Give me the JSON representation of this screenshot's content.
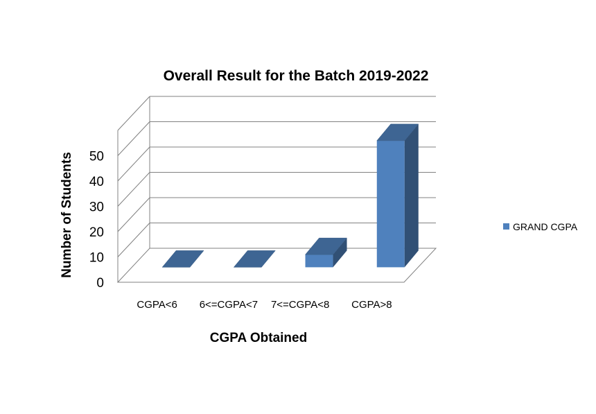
{
  "chart_data": {
    "type": "bar",
    "title": "Overall Result for the Batch 2019-2022",
    "xlabel": "CGPA Obtained",
    "ylabel": "Number of Students",
    "categories": [
      "CGPA<6",
      "6<=CGPA<7",
      "7<=CGPA<8",
      "CGPA>8"
    ],
    "series": [
      {
        "name": "GRAND CGPA",
        "values": [
          0,
          0,
          5,
          50
        ],
        "color": "#4F81BD"
      }
    ],
    "yticks": [
      "0",
      "10",
      "20",
      "30",
      "40",
      "50"
    ],
    "ylim": [
      0,
      60
    ],
    "grid": true,
    "legend": "right",
    "style": "3d-column"
  }
}
